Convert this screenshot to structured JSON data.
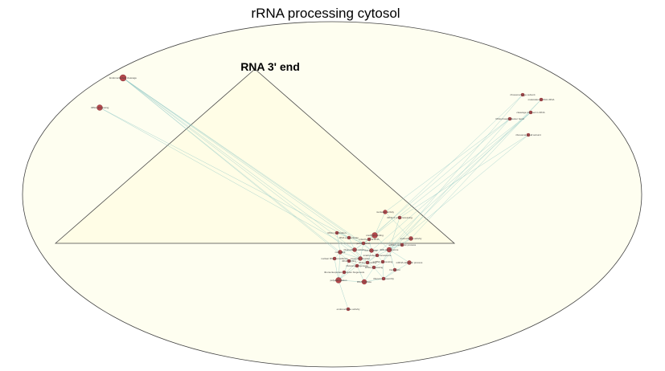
{
  "colors": {
    "region_fill": "#fefef0",
    "triangle_fill": "#fffde6",
    "outline": "#444444",
    "node_fill": "#b5474b",
    "node_stroke": "#7a2a2d",
    "edge": "#8fc7c4"
  },
  "diagram": {
    "title": "rRNA processing cytosol",
    "subregion_label": "RNA 3' end",
    "nodes": [
      {
        "id": "n1",
        "label": "Endonucleolytic cleavage"
      },
      {
        "id": "n2",
        "label": "rRNA processing"
      },
      {
        "id": "n3",
        "label": "ribosomal large subunit"
      },
      {
        "id": "n4",
        "label": "maturation of SSU-rRNA"
      },
      {
        "id": "n5",
        "label": "cleavage involved in rRNA"
      },
      {
        "id": "n6",
        "label": "RNA phosphodiester bond"
      },
      {
        "id": "n7",
        "label": "ribosomal small subunit"
      },
      {
        "id": "n8",
        "label": "nuclease activity"
      },
      {
        "id": "n9",
        "label": "rRNA 3' end processing"
      },
      {
        "id": "n10",
        "label": "snoRNA binding"
      },
      {
        "id": "n11",
        "label": "exonuclease activity"
      },
      {
        "id": "n12",
        "label": "RNA exonuclease"
      },
      {
        "id": "n13",
        "label": "preribosome"
      },
      {
        "id": "n14",
        "label": "nucleolus"
      },
      {
        "id": "n15",
        "label": "ribonuclease activity"
      },
      {
        "id": "n16",
        "label": "U3 snoRNP"
      },
      {
        "id": "n17",
        "label": "90S preribosome"
      },
      {
        "id": "n18",
        "label": "small-subunit processome"
      },
      {
        "id": "n19",
        "label": "exosome complex"
      },
      {
        "id": "n20",
        "label": "rRNA binding"
      },
      {
        "id": "n21",
        "label": "RNA processing"
      },
      {
        "id": "n22",
        "label": "ncRNA processing"
      },
      {
        "id": "n23",
        "label": "ribosome biogenesis"
      },
      {
        "id": "n24",
        "label": "tRNA processing"
      },
      {
        "id": "n25",
        "label": "mRNA catabolic process"
      },
      {
        "id": "n26",
        "label": "polyadenylation"
      },
      {
        "id": "n27",
        "label": "RNA helicase"
      },
      {
        "id": "n28",
        "label": "ribosome assembly"
      },
      {
        "id": "n29",
        "label": "endonuclease activity"
      },
      {
        "id": "n30",
        "label": "RNA modification"
      },
      {
        "id": "n31",
        "label": "translation"
      },
      {
        "id": "n32",
        "label": "ribonucleoprotein complex biogenesis"
      },
      {
        "id": "n33",
        "label": "ncRNA metabolic process"
      },
      {
        "id": "n34",
        "label": "nuclear RNA surveillance"
      },
      {
        "id": "n35",
        "label": "mitochondrial RNA"
      }
    ]
  }
}
